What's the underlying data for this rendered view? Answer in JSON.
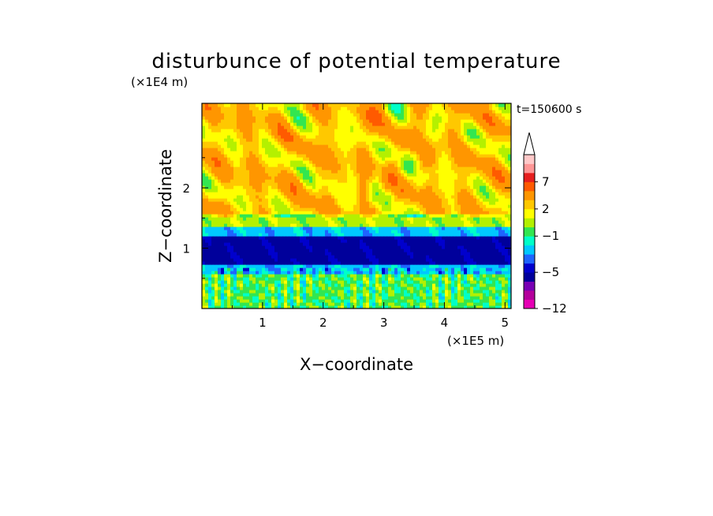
{
  "chart_data": {
    "type": "heatmap",
    "title": "disturbunce of potential temperature",
    "time_label": "t=150600 s",
    "xlabel": "X−coordinate",
    "ylabel": "Z−coordinate",
    "x_unit": "(×1E5 m)",
    "y_unit": "(×1E4 m)",
    "xlim": [
      0,
      5.1
    ],
    "ylim": [
      0,
      3.4
    ],
    "x_ticks": [
      "1",
      "2",
      "3",
      "4",
      "5"
    ],
    "y_ticks": [
      "1",
      "2"
    ],
    "colorbar": {
      "labels": [
        "−12",
        "−5",
        "−1",
        "2",
        "7"
      ],
      "levels": [
        -12,
        -11,
        -9,
        -7,
        -5,
        -4,
        -3,
        -2,
        -1,
        0,
        1,
        2,
        3,
        5,
        7,
        9,
        11
      ],
      "colors": [
        "#e600b4",
        "#b4009b",
        "#7800b4",
        "#00009b",
        "#0000cd",
        "#1e64ff",
        "#00c8ff",
        "#00ffc8",
        "#32e650",
        "#b4f000",
        "#ffff00",
        "#ffc800",
        "#ff9600",
        "#ff5a00",
        "#e61e1e",
        "#ff9696",
        "#ffc8c8"
      ],
      "overflow_triangle": true
    },
    "bands": [
      {
        "z_from": 0.0,
        "z_to": 0.6,
        "value": -0.5,
        "note": "surface layer, cyan with green/yellow patches"
      },
      {
        "z_from": 0.6,
        "z_to": 0.75,
        "value": -2.5,
        "note": "light blue"
      },
      {
        "z_from": 0.75,
        "z_to": 1.2,
        "value": -5.5,
        "note": "dark blue cold core"
      },
      {
        "z_from": 1.2,
        "z_to": 1.35,
        "value": -2.5,
        "note": "blue transition"
      },
      {
        "z_from": 1.35,
        "z_to": 1.55,
        "value": 0.5,
        "note": "green/yellow"
      },
      {
        "z_from": 1.55,
        "z_to": 3.4,
        "value": 2.5,
        "note": "upper layer, yellow/orange with gravity-wave fan"
      }
    ]
  }
}
